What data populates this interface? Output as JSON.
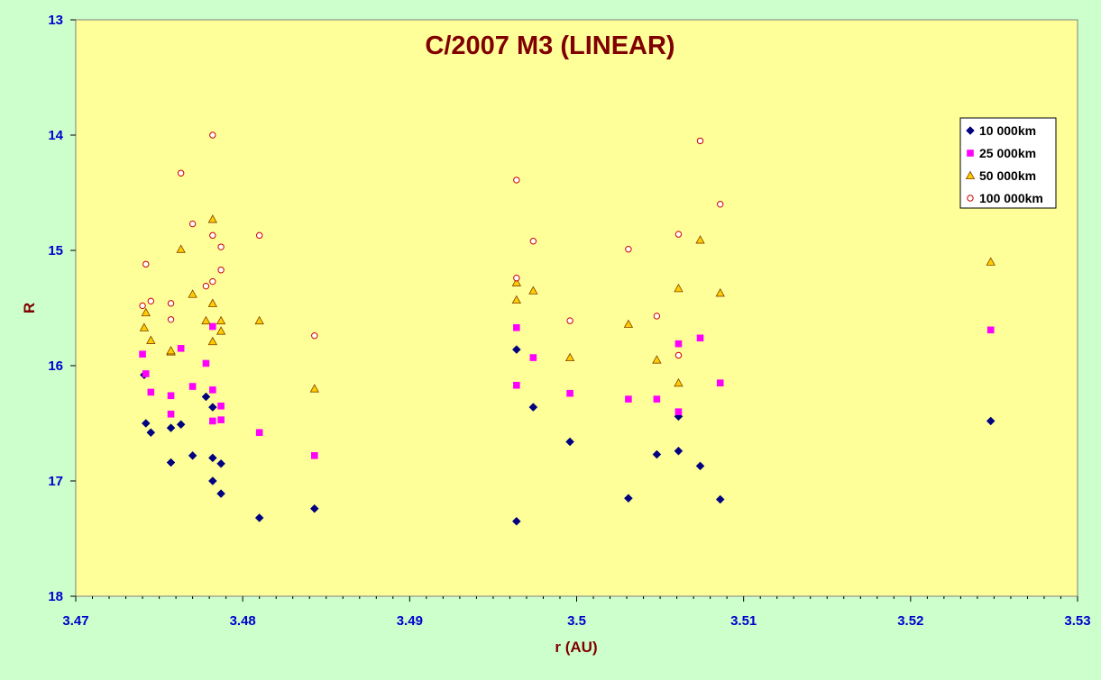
{
  "chart_data": {
    "type": "scatter",
    "title": "C/2007 M3 (LINEAR)",
    "xlabel": "r (AU)",
    "ylabel": "R",
    "xlim": [
      3.47,
      3.53
    ],
    "ylim": [
      13,
      18
    ],
    "y_reversed": true,
    "x_ticks": [
      "3.47",
      "3.48",
      "3.49",
      "3.5",
      "3.51",
      "3.52",
      "3.53"
    ],
    "y_ticks": [
      "13",
      "14",
      "15",
      "16",
      "17",
      "18"
    ],
    "grid": false,
    "legend_position": "top-right",
    "colors": {
      "page_background": "#ccffcc",
      "plot_background": "#ffff99",
      "title": "#800000",
      "tick_labels": "#0000cc"
    },
    "series": [
      {
        "name": "10 000km",
        "marker": "diamond",
        "color": "#000080",
        "points": [
          [
            3.4741,
            16.08
          ],
          [
            3.4742,
            16.5
          ],
          [
            3.4745,
            16.58
          ],
          [
            3.4757,
            16.54
          ],
          [
            3.4757,
            16.84
          ],
          [
            3.4763,
            16.51
          ],
          [
            3.477,
            16.78
          ],
          [
            3.4778,
            16.27
          ],
          [
            3.4782,
            16.36
          ],
          [
            3.4782,
            16.8
          ],
          [
            3.4782,
            17.0
          ],
          [
            3.4787,
            16.85
          ],
          [
            3.4787,
            17.11
          ],
          [
            3.481,
            17.32
          ],
          [
            3.4843,
            17.24
          ],
          [
            3.4964,
            15.86
          ],
          [
            3.4964,
            17.35
          ],
          [
            3.4974,
            16.36
          ],
          [
            3.4996,
            16.66
          ],
          [
            3.5031,
            17.15
          ],
          [
            3.5048,
            16.77
          ],
          [
            3.5061,
            16.44
          ],
          [
            3.5061,
            16.74
          ],
          [
            3.5074,
            16.87
          ],
          [
            3.5086,
            17.16
          ],
          [
            3.5248,
            16.48
          ]
        ]
      },
      {
        "name": "25 000km",
        "marker": "square",
        "color": "#ff00ff",
        "points": [
          [
            3.474,
            15.9
          ],
          [
            3.4742,
            16.07
          ],
          [
            3.4745,
            16.23
          ],
          [
            3.4757,
            16.26
          ],
          [
            3.4757,
            16.42
          ],
          [
            3.4763,
            15.85
          ],
          [
            3.477,
            16.18
          ],
          [
            3.4778,
            15.98
          ],
          [
            3.4782,
            15.66
          ],
          [
            3.4782,
            16.21
          ],
          [
            3.4782,
            16.48
          ],
          [
            3.4787,
            16.35
          ],
          [
            3.4787,
            16.47
          ],
          [
            3.481,
            16.58
          ],
          [
            3.4843,
            16.78
          ],
          [
            3.4964,
            15.67
          ],
          [
            3.4964,
            16.17
          ],
          [
            3.4974,
            15.93
          ],
          [
            3.4996,
            16.24
          ],
          [
            3.5031,
            16.29
          ],
          [
            3.5048,
            16.29
          ],
          [
            3.5061,
            15.81
          ],
          [
            3.5061,
            16.4
          ],
          [
            3.5074,
            15.76
          ],
          [
            3.5086,
            16.15
          ],
          [
            3.5248,
            15.69
          ]
        ]
      },
      {
        "name": "50 000km",
        "marker": "triangle",
        "color": "#ffcc00",
        "points": [
          [
            3.4741,
            15.67
          ],
          [
            3.4742,
            15.54
          ],
          [
            3.4745,
            15.78
          ],
          [
            3.4757,
            15.88
          ],
          [
            3.4757,
            15.87
          ],
          [
            3.4763,
            14.99
          ],
          [
            3.477,
            15.38
          ],
          [
            3.4778,
            15.61
          ],
          [
            3.4782,
            14.73
          ],
          [
            3.4782,
            15.46
          ],
          [
            3.4782,
            15.79
          ],
          [
            3.4787,
            15.61
          ],
          [
            3.4787,
            15.7
          ],
          [
            3.481,
            15.61
          ],
          [
            3.4843,
            16.2
          ],
          [
            3.4964,
            15.28
          ],
          [
            3.4964,
            15.43
          ],
          [
            3.4974,
            15.35
          ],
          [
            3.4996,
            15.93
          ],
          [
            3.5031,
            15.64
          ],
          [
            3.5048,
            15.95
          ],
          [
            3.5061,
            15.33
          ],
          [
            3.5061,
            16.15
          ],
          [
            3.5074,
            14.91
          ],
          [
            3.5086,
            15.37
          ],
          [
            3.5248,
            15.1
          ]
        ]
      },
      {
        "name": "100 000km",
        "marker": "circle",
        "color": "#cc0000",
        "points": [
          [
            3.474,
            15.48
          ],
          [
            3.4742,
            15.12
          ],
          [
            3.4745,
            15.44
          ],
          [
            3.4757,
            15.46
          ],
          [
            3.4757,
            15.6
          ],
          [
            3.4763,
            14.33
          ],
          [
            3.477,
            14.77
          ],
          [
            3.4778,
            15.31
          ],
          [
            3.4782,
            14.0
          ],
          [
            3.4782,
            14.87
          ],
          [
            3.4782,
            15.27
          ],
          [
            3.4787,
            14.97
          ],
          [
            3.4787,
            15.17
          ],
          [
            3.481,
            14.87
          ],
          [
            3.4843,
            15.74
          ],
          [
            3.4964,
            14.39
          ],
          [
            3.4964,
            15.24
          ],
          [
            3.4974,
            14.92
          ],
          [
            3.4996,
            15.61
          ],
          [
            3.5031,
            14.99
          ],
          [
            3.5048,
            15.57
          ],
          [
            3.5061,
            14.86
          ],
          [
            3.5061,
            15.91
          ],
          [
            3.5074,
            14.05
          ],
          [
            3.5086,
            14.6
          ]
        ]
      }
    ]
  }
}
